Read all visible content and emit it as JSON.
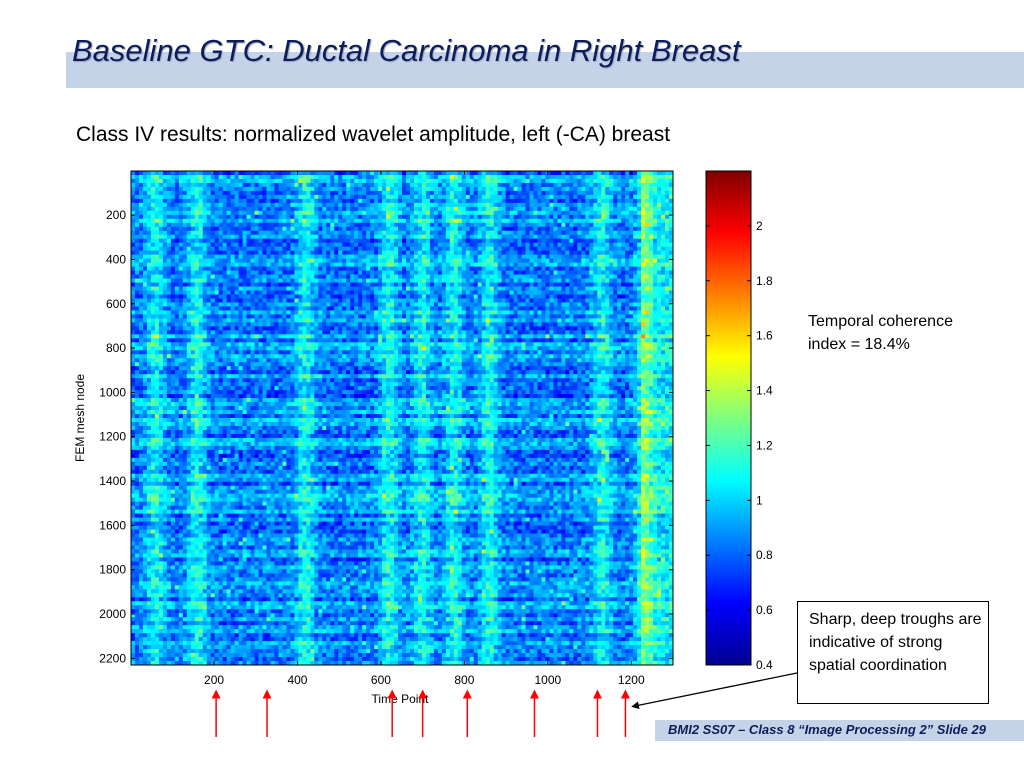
{
  "slide": {
    "title": "Baseline GTC: Ductal Carcinoma in Right Breast",
    "subtitle": "Class IV results: normalized wavelet amplitude, left (-CA) breast",
    "coherence_text": "Temporal coherence index = 18.4%",
    "callout_text": "Sharp, deep troughs are indicative of strong spatial coordination",
    "footer": "BMI2 SS07 – Class 8 “Image Processing 2” Slide 29",
    "arrow_color": "#ff0000"
  },
  "chart_data": {
    "type": "heatmap",
    "xlabel": "Time Point",
    "ylabel": "FEM mesh node",
    "xlim": [
      1,
      1300
    ],
    "ylim": [
      1,
      2230
    ],
    "y_reversed": true,
    "xticks": [
      200,
      400,
      600,
      800,
      1000,
      1200
    ],
    "yticks": [
      200,
      400,
      600,
      800,
      1000,
      1200,
      1400,
      1600,
      1800,
      2000,
      2200
    ],
    "colorbar": {
      "range": [
        0.4,
        2.2
      ],
      "ticks": [
        0.4,
        0.6,
        0.8,
        1,
        1.2,
        1.4,
        1.6,
        1.8,
        2
      ],
      "tick_labels": [
        "0.4",
        "0.6",
        "0.8",
        "1",
        "1.2",
        "1.4",
        "1.6",
        "1.8",
        "2"
      ],
      "colormap": "jet"
    },
    "high_amplitude_columns": [
      60,
      160,
      420,
      620,
      700,
      775,
      860,
      1130,
      1230
    ],
    "arrow_time_points": [
      205,
      327,
      627,
      700,
      807,
      968,
      1119,
      1186
    ]
  }
}
